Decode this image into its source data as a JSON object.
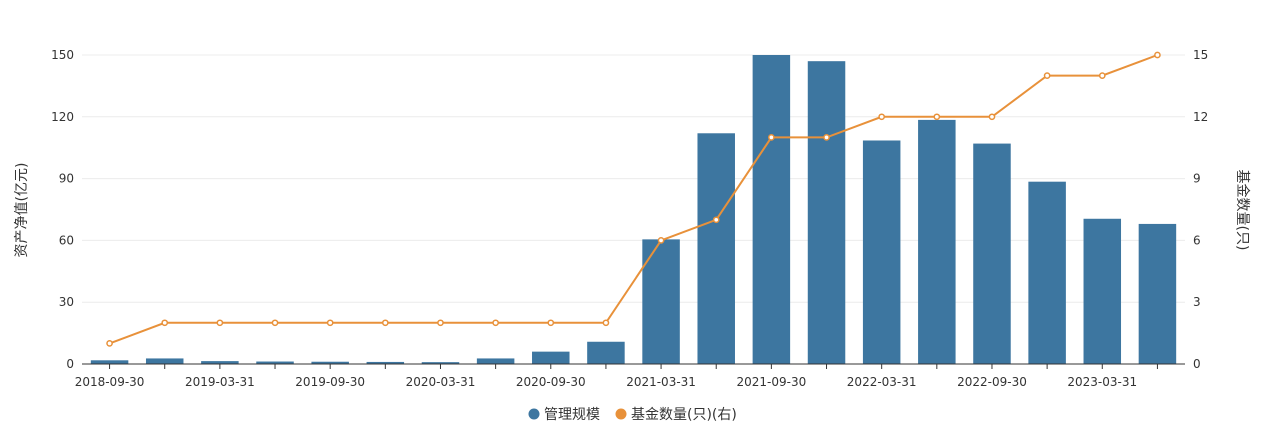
{
  "chart_data": {
    "type": "bar",
    "x": [
      "2018-09-30",
      "2018-12-31",
      "2019-03-31",
      "2019-06-30",
      "2019-09-30",
      "2019-12-31",
      "2020-03-31",
      "2020-06-30",
      "2020-09-30",
      "2020-12-31",
      "2021-03-31",
      "2021-06-30",
      "2021-09-30",
      "2021-12-31",
      "2022-03-31",
      "2022-06-30",
      "2022-09-30",
      "2022-12-31",
      "2023-03-31",
      "2023-06-30"
    ],
    "x_tick_labels": [
      "2018-09-30",
      "2019-03-31",
      "2019-09-30",
      "2020-03-31",
      "2020-09-30",
      "2021-03-31",
      "2021-09-30",
      "2022-03-31",
      "2022-09-30",
      "2023-03-31"
    ],
    "series": [
      {
        "name": "管理规模",
        "type": "bar",
        "axis": "left",
        "color": "#3d76a0",
        "values": [
          1.8,
          2.7,
          1.4,
          1.2,
          1.1,
          1.0,
          0.9,
          2.7,
          6.0,
          10.8,
          60.5,
          112,
          150,
          147,
          108.5,
          118.5,
          107,
          88.5,
          70.5,
          68
        ]
      },
      {
        "name": "基金数量(只)(右)",
        "type": "line",
        "axis": "right",
        "color": "#e8913a",
        "values": [
          1,
          2,
          2,
          2,
          2,
          2,
          2,
          2,
          2,
          2,
          6,
          7,
          11,
          11,
          12,
          12,
          12,
          14,
          14,
          15
        ]
      }
    ],
    "y_left": {
      "label": "资产净值(亿元)",
      "range": [
        0,
        150
      ],
      "ticks": [
        0,
        30,
        60,
        90,
        120,
        150
      ]
    },
    "y_right": {
      "label": "基金数量(只)",
      "range": [
        0,
        15
      ],
      "ticks": [
        0,
        3,
        6,
        9,
        12,
        15
      ]
    },
    "grid": true,
    "legend_position": "bottom"
  }
}
